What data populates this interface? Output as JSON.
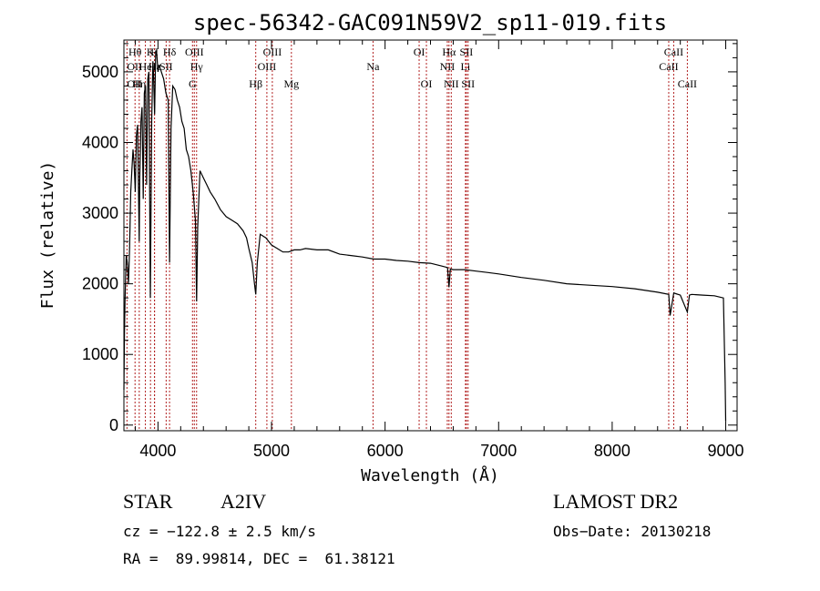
{
  "chart_data": {
    "type": "line",
    "title": "spec-56342-GAC091N59V2_sp11-019.fits",
    "xlabel": "Wavelength (Å)",
    "ylabel": "Flux (relative)",
    "xlim": [
      3700,
      9100
    ],
    "ylim": [
      -80,
      5450
    ],
    "x_ticks": [
      "4000",
      "5000",
      "6000",
      "7000",
      "8000",
      "9000"
    ],
    "y_ticks": [
      "0",
      "1000",
      "2000",
      "3000",
      "4000",
      "5000"
    ],
    "grid": false,
    "series": [
      {
        "line_color": "#000000",
        "x": [
          3700,
          3705,
          3710,
          3715,
          3720,
          3730,
          3740,
          3750,
          3760,
          3770,
          3780,
          3790,
          3800,
          3810,
          3820,
          3835,
          3840,
          3850,
          3860,
          3870,
          3880,
          3890,
          3900,
          3910,
          3920,
          3933,
          3945,
          3955,
          3960,
          3970,
          3980,
          3990,
          4000,
          4010,
          4020,
          4030,
          4050,
          4070,
          4090,
          4102,
          4115,
          4130,
          4150,
          4170,
          4190,
          4210,
          4230,
          4250,
          4270,
          4290,
          4310,
          4330,
          4340,
          4350,
          4370,
          4400,
          4430,
          4460,
          4500,
          4550,
          4600,
          4650,
          4700,
          4750,
          4780,
          4800,
          4830,
          4850,
          4861,
          4875,
          4900,
          4950,
          5000,
          5050,
          5100,
          5150,
          5200,
          5250,
          5300,
          5400,
          5500,
          5600,
          5700,
          5800,
          5900,
          6000,
          6100,
          6200,
          6300,
          6400,
          6500,
          6550,
          6563,
          6575,
          6600,
          6700,
          6800,
          6900,
          7000,
          7200,
          7400,
          7600,
          7800,
          8000,
          8200,
          8400,
          8498,
          8510,
          8542,
          8560,
          8600,
          8662,
          8680,
          8700,
          8800,
          8900,
          8980,
          8995,
          9000
        ],
        "y": [
          500,
          1300,
          1750,
          2100,
          2400,
          2300,
          2000,
          2500,
          3300,
          3600,
          3900,
          3700,
          3300,
          4100,
          4250,
          2600,
          3500,
          4300,
          4500,
          3200,
          4700,
          4800,
          3400,
          4900,
          5000,
          1800,
          4300,
          5150,
          5000,
          4400,
          5300,
          5250,
          5000,
          5100,
          5050,
          5000,
          4900,
          4700,
          4600,
          2300,
          4200,
          4800,
          4750,
          4600,
          4500,
          4300,
          4200,
          3900,
          3800,
          3600,
          3300,
          2900,
          1750,
          2800,
          3600,
          3500,
          3400,
          3300,
          3200,
          3050,
          2950,
          2900,
          2850,
          2750,
          2650,
          2500,
          2300,
          2000,
          1850,
          2300,
          2700,
          2650,
          2550,
          2500,
          2450,
          2450,
          2480,
          2480,
          2500,
          2480,
          2480,
          2420,
          2400,
          2380,
          2350,
          2350,
          2330,
          2320,
          2300,
          2290,
          2250,
          2230,
          1950,
          2210,
          2200,
          2200,
          2180,
          2160,
          2140,
          2090,
          2050,
          2000,
          1980,
          1960,
          1930,
          1880,
          1850,
          1550,
          1870,
          1860,
          1840,
          1600,
          1840,
          1850,
          1840,
          1830,
          1800,
          600,
          50
        ]
      }
    ],
    "line_markers": [
      {
        "wl": 3798,
        "label": "Hθ",
        "row": 1,
        "anchor": "middle"
      },
      {
        "wl": 3727,
        "label": "OII",
        "row": 2,
        "anchor": "start"
      },
      {
        "wl": 3727,
        "label": "OII",
        "row": 3,
        "anchor": "start"
      },
      {
        "wl": 3835,
        "label": "Hη",
        "row": 3,
        "anchor": "middle"
      },
      {
        "wl": 3889,
        "label": "He",
        "row": 2,
        "anchor": "middle"
      },
      {
        "wl": 3934,
        "label": "K",
        "row": 1,
        "anchor": "middle"
      },
      {
        "wl": 3969,
        "label": "H",
        "row": 1,
        "anchor": "middle"
      },
      {
        "wl": 3970,
        "label": "Hε",
        "row": 2,
        "anchor": "middle"
      },
      {
        "wl": 4072,
        "label": "SII",
        "row": 2,
        "anchor": "middle"
      },
      {
        "wl": 4102,
        "label": "Hδ",
        "row": 1,
        "anchor": "middle"
      },
      {
        "wl": 4320,
        "label": "OIII",
        "row": 1,
        "anchor": "middle"
      },
      {
        "wl": 4340,
        "label": "Hγ",
        "row": 2,
        "anchor": "middle"
      },
      {
        "wl": 4304,
        "label": "G",
        "row": 3,
        "anchor": "middle"
      },
      {
        "wl": 4861,
        "label": "Hβ",
        "row": 3,
        "anchor": "middle"
      },
      {
        "wl": 5007,
        "label": "OIII",
        "row": 1,
        "anchor": "middle"
      },
      {
        "wl": 4959,
        "label": "OIII",
        "row": 2,
        "anchor": "middle"
      },
      {
        "wl": 5175,
        "label": "Mg",
        "row": 3,
        "anchor": "middle"
      },
      {
        "wl": 5894,
        "label": "Na",
        "row": 2,
        "anchor": "middle"
      },
      {
        "wl": 6300,
        "label": "OI",
        "row": 1,
        "anchor": "middle"
      },
      {
        "wl": 6364,
        "label": "OI",
        "row": 3,
        "anchor": "middle"
      },
      {
        "wl": 6563,
        "label": "Hα",
        "row": 1,
        "anchor": "middle"
      },
      {
        "wl": 6548,
        "label": "NII",
        "row": 2,
        "anchor": "middle"
      },
      {
        "wl": 6583,
        "label": "NII",
        "row": 3,
        "anchor": "middle"
      },
      {
        "wl": 6716,
        "label": "SII",
        "row": 1,
        "anchor": "middle"
      },
      {
        "wl": 6708,
        "label": "Li",
        "row": 2,
        "anchor": "middle"
      },
      {
        "wl": 6731,
        "label": "SII",
        "row": 3,
        "anchor": "middle"
      },
      {
        "wl": 8542,
        "label": "CaII",
        "row": 1,
        "anchor": "middle"
      },
      {
        "wl": 8498,
        "label": "CaII",
        "row": 2,
        "anchor": "middle"
      },
      {
        "wl": 8662,
        "label": "CaII",
        "row": 3,
        "anchor": "middle"
      }
    ],
    "marker_color": "#b22222"
  },
  "info": {
    "object_class": "STAR",
    "subclass": "A2IV",
    "survey": "LAMOST DR2",
    "redshift": "cz = −122.8 ± 2.5 km/s",
    "obs_date": "Obs−Date: 20130218",
    "coords": "RA =  89.99814, DEC =  61.38121"
  }
}
